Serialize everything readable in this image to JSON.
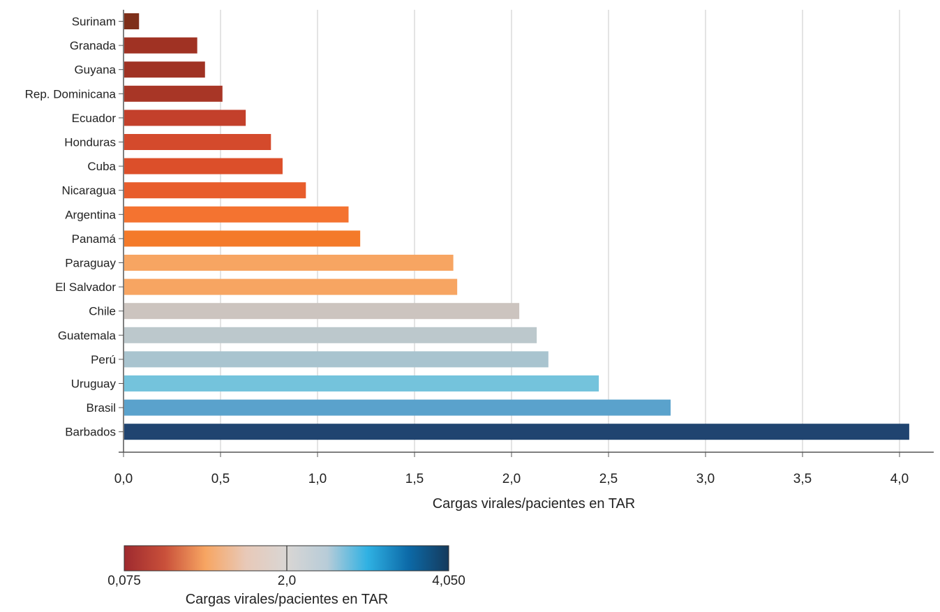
{
  "chart_data": {
    "type": "bar",
    "orientation": "horizontal",
    "categories": [
      "Surinam",
      "Granada",
      "Guyana",
      "Rep. Dominicana",
      "Ecuador",
      "Honduras",
      "Cuba",
      "Nicaragua",
      "Argentina",
      "Panamá",
      "Paraguay",
      "El Salvador",
      "Chile",
      "Guatemala",
      "Perú",
      "Uruguay",
      "Brasil",
      "Barbados"
    ],
    "values": [
      0.08,
      0.38,
      0.42,
      0.51,
      0.63,
      0.76,
      0.82,
      0.94,
      1.16,
      1.22,
      1.7,
      1.72,
      2.04,
      2.13,
      2.19,
      2.45,
      2.82,
      4.05
    ],
    "colors": [
      "#7e2f1a",
      "#a03223",
      "#a03223",
      "#a83626",
      "#c3402b",
      "#d44a2c",
      "#dc4f2a",
      "#e85d2c",
      "#f47330",
      "#f47a2a",
      "#f7a562",
      "#f7a562",
      "#ccc4bf",
      "#bcc8cc",
      "#a9c4cf",
      "#74c3dc",
      "#5aa2cc",
      "#204470"
    ],
    "xlabel": "Cargas virales/pacientes en TAR",
    "xlim": [
      -0.03,
      4.2
    ],
    "xticks": [
      0,
      0.5,
      1.0,
      1.5,
      2.0,
      2.5,
      3.0,
      3.5,
      4.0
    ],
    "xtick_labels": [
      "0,0",
      "0,5",
      "1,0",
      "1,5",
      "2,0",
      "2,5",
      "3,0",
      "3,5",
      "4,0"
    ],
    "grid": "vertical",
    "color_scale": {
      "title": "Cargas virales/pacientes en TAR",
      "min": 0.075,
      "mid": 2.0,
      "max": 4.05,
      "min_label": "0,075",
      "mid_label": "2,0",
      "max_label": "4,050",
      "stops": [
        "#9e2a2f",
        "#c9503a",
        "#f7a562",
        "#e8c9b8",
        "#d9d6d4",
        "#b8ccd8",
        "#2fb1e3",
        "#0c6aa8",
        "#153a5c"
      ]
    }
  }
}
